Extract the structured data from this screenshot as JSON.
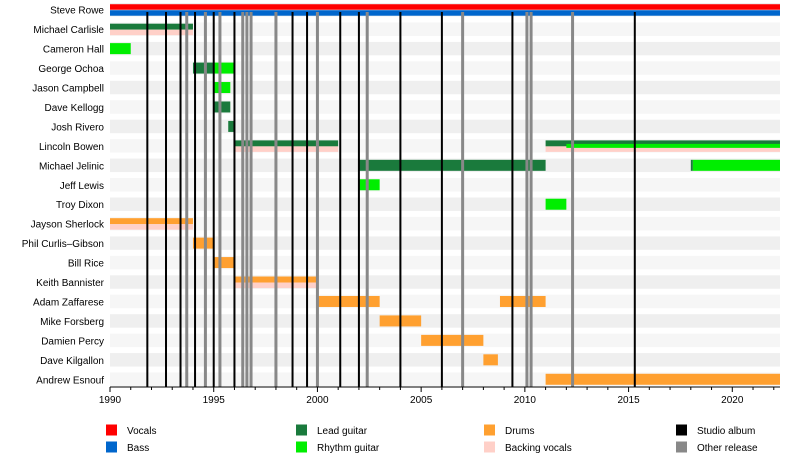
{
  "chart_data": {
    "type": "timeline",
    "title": "",
    "x_range": [
      1990,
      2022.3
    ],
    "x_ticks": [
      "1990",
      "1995",
      "2000",
      "2005",
      "2010",
      "2015",
      "2020"
    ],
    "grid": true,
    "members": [
      "Steve Rowe",
      "Michael Carlisle",
      "Cameron Hall",
      "George Ochoa",
      "Jason Campbell",
      "Dave Kellogg",
      "Josh Rivero",
      "Lincoln Bowen",
      "Michael Jelinic",
      "Jeff Lewis",
      "Troy Dixon",
      "Jayson Sherlock",
      "Phil Curlis–Gibson",
      "Bill Rice",
      "Keith Bannister",
      "Adam Zaffarese",
      "Mike Forsberg",
      "Damien Percy",
      "Dave Kilgallon",
      "Andrew Esnouf"
    ],
    "bars": [
      {
        "member": "Steve Rowe",
        "role": "Vocals",
        "start": 1990,
        "end": 2022.3
      },
      {
        "member": "Steve Rowe",
        "role": "Bass",
        "start": 1990,
        "end": 2022.3
      },
      {
        "member": "Michael Carlisle",
        "role": "Lead guitar",
        "start": 1990,
        "end": 1994
      },
      {
        "member": "Michael Carlisle",
        "role": "Backing vocals",
        "start": 1990,
        "end": 1994
      },
      {
        "member": "Cameron Hall",
        "role": "Rhythm guitar",
        "start": 1990,
        "end": 1991
      },
      {
        "member": "George Ochoa",
        "role": "Lead guitar",
        "start": 1994,
        "end": 1995
      },
      {
        "member": "George Ochoa",
        "role": "Rhythm guitar",
        "start": 1995,
        "end": 1996
      },
      {
        "member": "Jason Campbell",
        "role": "Rhythm guitar",
        "start": 1995,
        "end": 1995.8
      },
      {
        "member": "Dave Kellogg",
        "role": "Lead guitar",
        "start": 1995,
        "end": 1995.8
      },
      {
        "member": "Josh Rivero",
        "role": "Lead guitar",
        "start": 1995.7,
        "end": 1996
      },
      {
        "member": "Lincoln Bowen",
        "role": "Lead guitar",
        "start": 1996,
        "end": 2001
      },
      {
        "member": "Lincoln Bowen",
        "role": "Backing vocals",
        "start": 1996,
        "end": 2001
      },
      {
        "member": "Lincoln Bowen",
        "role": "Lead guitar",
        "start": 2011,
        "end": 2022.3
      },
      {
        "member": "Lincoln Bowen",
        "role": "Backing vocals",
        "start": 2011,
        "end": 2022.3
      },
      {
        "member": "Lincoln Bowen",
        "role": "Rhythm guitar",
        "start": 2012,
        "end": 2022.3
      },
      {
        "member": "Michael Jelinic",
        "role": "Lead guitar",
        "start": 2002,
        "end": 2011
      },
      {
        "member": "Michael Jelinic",
        "role": "Lead guitar",
        "start": 2018,
        "end": 2018.1
      },
      {
        "member": "Michael Jelinic",
        "role": "Rhythm guitar",
        "start": 2018.1,
        "end": 2022.3
      },
      {
        "member": "Jeff Lewis",
        "role": "Rhythm guitar",
        "start": 2002,
        "end": 2003
      },
      {
        "member": "Troy Dixon",
        "role": "Rhythm guitar",
        "start": 2011,
        "end": 2012
      },
      {
        "member": "Jayson Sherlock",
        "role": "Drums",
        "start": 1990,
        "end": 1994
      },
      {
        "member": "Jayson Sherlock",
        "role": "Backing vocals",
        "start": 1990,
        "end": 1994
      },
      {
        "member": "Phil Curlis–Gibson",
        "role": "Drums",
        "start": 1994,
        "end": 1995
      },
      {
        "member": "Bill Rice",
        "role": "Drums",
        "start": 1995,
        "end": 1996
      },
      {
        "member": "Keith Bannister",
        "role": "Drums",
        "start": 1996,
        "end": 2000
      },
      {
        "member": "Keith Bannister",
        "role": "Backing vocals",
        "start": 1996,
        "end": 2000
      },
      {
        "member": "Adam Zaffarese",
        "role": "Drums",
        "start": 2000,
        "end": 2003
      },
      {
        "member": "Adam Zaffarese",
        "role": "Drums",
        "start": 2008.8,
        "end": 2011
      },
      {
        "member": "Mike Forsberg",
        "role": "Drums",
        "start": 2003,
        "end": 2005
      },
      {
        "member": "Damien Percy",
        "role": "Drums",
        "start": 2005,
        "end": 2008
      },
      {
        "member": "Dave Kilgallon",
        "role": "Drums",
        "start": 2008,
        "end": 2008.7
      },
      {
        "member": "Andrew Esnouf",
        "role": "Drums",
        "start": 2011,
        "end": 2022.3
      }
    ],
    "releases": [
      {
        "year": 1991.8,
        "kind": "Studio album"
      },
      {
        "year": 1992.7,
        "kind": "Studio album"
      },
      {
        "year": 1993.4,
        "kind": "Studio album"
      },
      {
        "year": 1993.7,
        "kind": "Other release"
      },
      {
        "year": 1994.1,
        "kind": "Studio album"
      },
      {
        "year": 1994.6,
        "kind": "Other release"
      },
      {
        "year": 1995.0,
        "kind": "Studio album"
      },
      {
        "year": 1995.3,
        "kind": "Other release"
      },
      {
        "year": 1996.0,
        "kind": "Studio album"
      },
      {
        "year": 1996.4,
        "kind": "Other release"
      },
      {
        "year": 1996.6,
        "kind": "Other release"
      },
      {
        "year": 1996.8,
        "kind": "Other release"
      },
      {
        "year": 1998.0,
        "kind": "Other release"
      },
      {
        "year": 1998.8,
        "kind": "Studio album"
      },
      {
        "year": 1999.5,
        "kind": "Studio album"
      },
      {
        "year": 2000.0,
        "kind": "Other release"
      },
      {
        "year": 2001.1,
        "kind": "Studio album"
      },
      {
        "year": 2002.0,
        "kind": "Studio album"
      },
      {
        "year": 2002.4,
        "kind": "Other release"
      },
      {
        "year": 2004.0,
        "kind": "Studio album"
      },
      {
        "year": 2006.0,
        "kind": "Studio album"
      },
      {
        "year": 2007.0,
        "kind": "Other release"
      },
      {
        "year": 2009.4,
        "kind": "Studio album"
      },
      {
        "year": 2010.1,
        "kind": "Other release"
      },
      {
        "year": 2010.3,
        "kind": "Other release"
      },
      {
        "year": 2012.3,
        "kind": "Other release"
      },
      {
        "year": 2015.3,
        "kind": "Studio album"
      }
    ],
    "legend": [
      {
        "label": "Vocals",
        "color": "#ff0000"
      },
      {
        "label": "Bass",
        "color": "#0066cc"
      },
      {
        "label": "Lead guitar",
        "color": "#1a7a3c"
      },
      {
        "label": "Rhythm guitar",
        "color": "#00ee00"
      },
      {
        "label": "Drums",
        "color": "#ffa030"
      },
      {
        "label": "Backing vocals",
        "color": "#ffd0c8"
      },
      {
        "label": "Studio album",
        "color": "#000000"
      },
      {
        "label": "Other release",
        "color": "#888888"
      }
    ],
    "legend_placement": "bottom"
  }
}
